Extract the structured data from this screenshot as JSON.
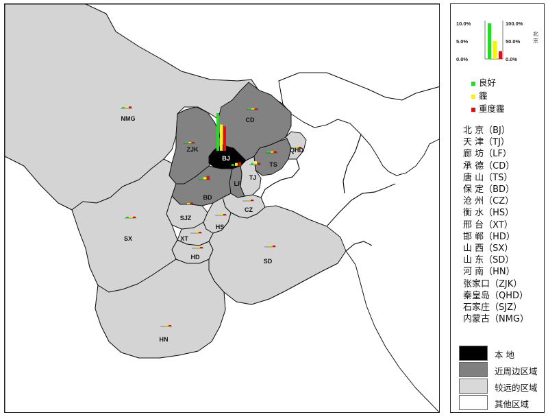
{
  "legend": {
    "scale": {
      "left_ticks": [
        "10.0%",
        "5.0%",
        "0.0%"
      ],
      "right_ticks": [
        "100.0%",
        "50.0%",
        "0.0%"
      ],
      "side_label": [
        "北",
        "京"
      ],
      "sample_values": [
        100,
        50,
        22
      ]
    },
    "categories": [
      {
        "label": "良好",
        "color": "#22dd22"
      },
      {
        "label": "霾",
        "color": "#f5f500"
      },
      {
        "label": "重度霾",
        "color": "#e01010"
      }
    ],
    "abbreviations": [
      "北 京（BJ）",
      "天 津（TJ）",
      "廊 坊（LF）",
      "承 德（CD）",
      "唐 山（TS）",
      "保 定（BD）",
      "沧 州（CZ）",
      "衡 水（HS）",
      "邢 台（XT）",
      "邯 郸（HD）",
      "山 西（SX）",
      "山 东（SD）",
      "河 南（HN）",
      "张家口（ZJK）",
      "秦皇岛（QHD）",
      "石家庄（SJZ）",
      "内蒙古（NMG）"
    ],
    "zones": [
      {
        "label": "本 地",
        "color": "#000000"
      },
      {
        "label": "近周边区域",
        "color": "#808080"
      },
      {
        "label": "较远的区域",
        "color": "#d9d9d9"
      },
      {
        "label": "其他区域",
        "color": "#ffffff"
      }
    ]
  },
  "map": {
    "colors": {
      "local": "#000000",
      "near": "#828282",
      "far": "#d4d4d4",
      "other": "#ffffff",
      "border": "#111111"
    },
    "regions": [
      {
        "id": "BJ",
        "label": "BJ",
        "bars": [
          100,
          70,
          65
        ]
      },
      {
        "id": "TJ",
        "label": "TJ",
        "bars": [
          4,
          9,
          5
        ]
      },
      {
        "id": "LF",
        "label": "LF",
        "bars": [
          5,
          8,
          10
        ]
      },
      {
        "id": "CD",
        "label": "CD",
        "bars": [
          1,
          1.5,
          1.5
        ]
      },
      {
        "id": "TS",
        "label": "TS",
        "bars": [
          5,
          4,
          5
        ]
      },
      {
        "id": "BD",
        "label": "BD",
        "bars": [
          1,
          7,
          10
        ]
      },
      {
        "id": "CZ",
        "label": "CZ",
        "bars": [
          0,
          3,
          2
        ]
      },
      {
        "id": "HS",
        "label": "HS",
        "bars": [
          0,
          3,
          2
        ]
      },
      {
        "id": "XT",
        "label": "XT",
        "bars": [
          0,
          1.5,
          0.5
        ]
      },
      {
        "id": "HD",
        "label": "HD",
        "bars": [
          0,
          1.5,
          1.5
        ]
      },
      {
        "id": "SX",
        "label": "SX",
        "bars": [
          1,
          4,
          4
        ]
      },
      {
        "id": "SD",
        "label": "SD",
        "bars": [
          0,
          2,
          1
        ]
      },
      {
        "id": "HN",
        "label": "HN",
        "bars": [
          0,
          1,
          0.5
        ]
      },
      {
        "id": "ZJK",
        "label": "ZJK",
        "bars": [
          4,
          3,
          1
        ]
      },
      {
        "id": "QHD",
        "label": "QHD",
        "bars": [
          0,
          1,
          1
        ]
      },
      {
        "id": "SJZ",
        "label": "SJZ",
        "bars": [
          0,
          3,
          5
        ]
      },
      {
        "id": "NMG",
        "label": "NMG",
        "bars": [
          3,
          5,
          5
        ]
      }
    ]
  }
}
